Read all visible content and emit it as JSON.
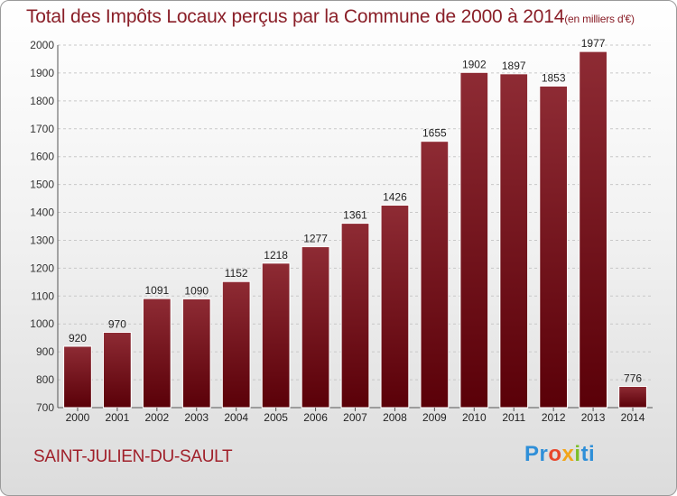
{
  "chart_data": {
    "type": "bar",
    "title": "Total des Impôts Locaux perçus par la Commune de 2000 à 2014",
    "unit_note": "(en milliers d'€)",
    "categories": [
      "2000",
      "2001",
      "2002",
      "2003",
      "2004",
      "2005",
      "2006",
      "2007",
      "2008",
      "2009",
      "2010",
      "2011",
      "2012",
      "2013",
      "2014"
    ],
    "values": [
      920,
      970,
      1091,
      1090,
      1152,
      1218,
      1277,
      1361,
      1426,
      1655,
      1902,
      1897,
      1853,
      1977,
      776
    ],
    "ylim": [
      700,
      2000
    ],
    "yticks": [
      700,
      800,
      900,
      1000,
      1100,
      1200,
      1300,
      1400,
      1500,
      1600,
      1700,
      1800,
      1900,
      2000
    ],
    "grid": true,
    "xlabel": "",
    "ylabel": "",
    "bar_color_top": "#8e2b34",
    "bar_color_bottom": "#5a0008"
  },
  "footer": {
    "commune": "SAINT-JULIEN-DU-SAULT",
    "logo": "Proxiti"
  }
}
